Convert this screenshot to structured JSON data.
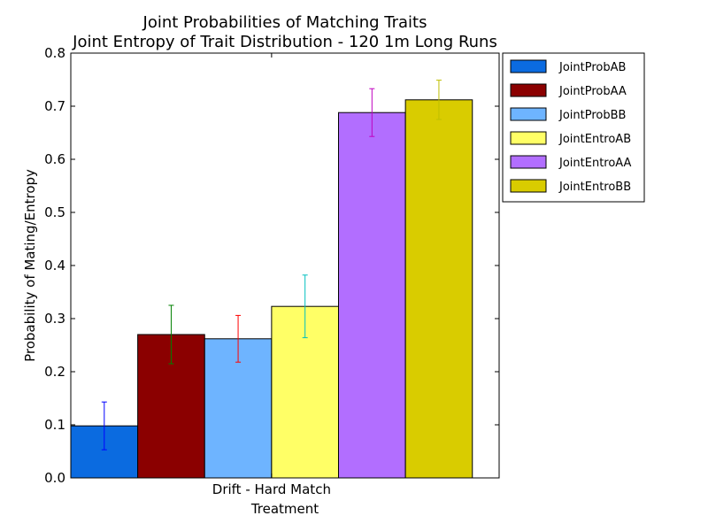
{
  "chart_data": {
    "type": "bar",
    "title_line1": "Joint Probabilities of Matching Traits",
    "title_line2": "Joint Entropy of Trait Distribution - 120 1m Long Runs",
    "xlabel": "Treatment",
    "ylabel": "Probability of Mating/Entropy",
    "categories": [
      "Drift - Hard Match"
    ],
    "ylim": [
      0,
      0.8
    ],
    "yticks": [
      "0.0",
      "0.1",
      "0.2",
      "0.3",
      "0.4",
      "0.5",
      "0.6",
      "0.7",
      "0.8"
    ],
    "legend_position": "outside-right-top",
    "series": [
      {
        "name": "JointProbAB",
        "values": [
          0.098
        ],
        "error": [
          0.045
        ],
        "color": "#0b6be0",
        "error_color": "#0000ff"
      },
      {
        "name": "JointProbAA",
        "values": [
          0.27
        ],
        "error": [
          0.055
        ],
        "color": "#8b0000",
        "error_color": "#008000"
      },
      {
        "name": "JointProbBB",
        "values": [
          0.262
        ],
        "error": [
          0.044
        ],
        "color": "#6eb4ff",
        "error_color": "#ff0000"
      },
      {
        "name": "JointEntroAB",
        "values": [
          0.323
        ],
        "error": [
          0.059
        ],
        "color": "#ffff66",
        "error_color": "#00bfbf"
      },
      {
        "name": "JointEntroAA",
        "values": [
          0.688
        ],
        "error": [
          0.045
        ],
        "color": "#b26eff",
        "error_color": "#bf00bf"
      },
      {
        "name": "JointEntroBB",
        "values": [
          0.712
        ],
        "error": [
          0.037
        ],
        "color": "#d9cc00",
        "error_color": "#bfbf00"
      }
    ]
  }
}
